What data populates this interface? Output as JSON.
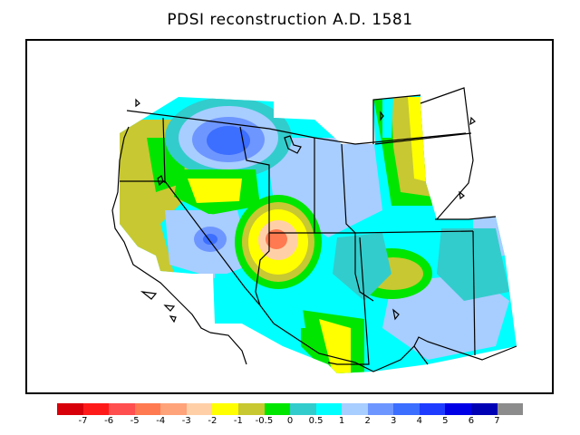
{
  "title": "PDSI reconstruction A.D. 1581",
  "legend": {
    "colors": [
      "#d7000a",
      "#ff1a1a",
      "#ff4f4f",
      "#ff7a50",
      "#ffa37a",
      "#ffd0a8",
      "#ffff00",
      "#c8c832",
      "#00e600",
      "#33cccc",
      "#00ffff",
      "#a8cdff",
      "#6e96ff",
      "#3c6eff",
      "#1e3cff",
      "#0000e6",
      "#0000b4",
      "#8c8c8c"
    ],
    "tick_labels": [
      "-7",
      "-6",
      "-5",
      "-4",
      "-3",
      "-2",
      "-1",
      "-0.5",
      "0",
      "0.5",
      "1",
      "2",
      "3",
      "4",
      "5",
      "6",
      "7"
    ]
  }
}
